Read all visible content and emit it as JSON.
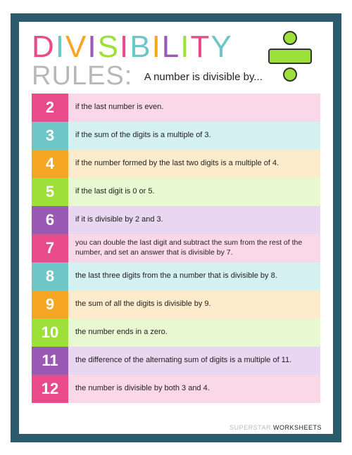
{
  "header": {
    "title_line1": "DIVISIBILITY",
    "title_line2": "RULES:",
    "subtitle": "A number is divisible by...",
    "title_colors": [
      "#e94b8a",
      "#6fc6c6",
      "#f5a623",
      "#9b59b6",
      "#9de03a",
      "#e94b8a",
      "#6fc6c6",
      "#f5a623",
      "#9b59b6",
      "#9de03a",
      "#e94b8a",
      "#6fc6c6"
    ],
    "icon_dot_color": "#9de03a",
    "icon_bar_color": "#9de03a"
  },
  "rows": [
    {
      "n": "2",
      "num_bg": "#e94b8a",
      "rule_bg": "#fbd8e7",
      "rule": "if the last number is even."
    },
    {
      "n": "3",
      "num_bg": "#6fc6c6",
      "rule_bg": "#d4f0f0",
      "rule": "if the sum of the digits is a multiple of 3."
    },
    {
      "n": "4",
      "num_bg": "#f5a623",
      "rule_bg": "#fdeccb",
      "rule": "if the number formed by the last two digits is a multiple of 4."
    },
    {
      "n": "5",
      "num_bg": "#9de03a",
      "rule_bg": "#e8f8d0",
      "rule": "if the last digit is 0 or 5."
    },
    {
      "n": "6",
      "num_bg": "#9b59b6",
      "rule_bg": "#e9d6f1",
      "rule": "if it is divisible by 2 and 3."
    },
    {
      "n": "7",
      "num_bg": "#e94b8a",
      "rule_bg": "#fbd8e7",
      "rule": "you can double the last digit and subtract the sum from the rest of the number, and set an answer that is divisible by 7.",
      "small": true
    },
    {
      "n": "8",
      "num_bg": "#6fc6c6",
      "rule_bg": "#d4f0f0",
      "rule": "the last three digits from the a number that is divisible by 8."
    },
    {
      "n": "9",
      "num_bg": "#f5a623",
      "rule_bg": "#fdeccb",
      "rule": "the sum of all the digits is divisible by 9."
    },
    {
      "n": "10",
      "num_bg": "#9de03a",
      "rule_bg": "#e8f8d0",
      "rule": "the number ends in a zero."
    },
    {
      "n": "11",
      "num_bg": "#9b59b6",
      "rule_bg": "#e9d6f1",
      "rule": "the difference of the alternating sum of digits is a multiple of 11."
    },
    {
      "n": "12",
      "num_bg": "#e94b8a",
      "rule_bg": "#fbd8e7",
      "rule": "the number is divisible by both 3 and 4."
    }
  ],
  "footer": {
    "word1": "SUPERSTAR",
    "word2": "WORKSHEETS"
  }
}
